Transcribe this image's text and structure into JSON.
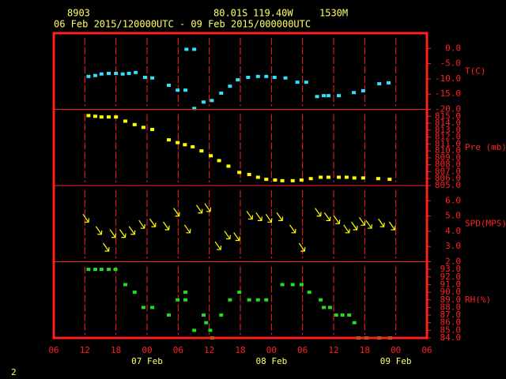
{
  "header": {
    "station": "8903",
    "lat": "80.01S",
    "lon": "119.40W",
    "elev": "1530M",
    "period": "06 Feb 2015/120000UTC - 09 Feb 2015/000000UTC"
  },
  "footer": "2",
  "chart_data": [
    {
      "type": "scatter",
      "y_label": "T(C)",
      "color": "#33e0ff",
      "xlim": [
        0,
        72
      ],
      "ylim": [
        -20,
        5
      ],
      "yticks": [
        {
          "value": 0,
          "label": "0.0"
        },
        {
          "value": -5,
          "label": "-5.0"
        },
        {
          "value": -10,
          "label": "-10.0"
        },
        {
          "value": -15,
          "label": "-15.0"
        },
        {
          "value": -20,
          "label": "-20.0"
        }
      ],
      "x": [
        6.7,
        8.0,
        9.2,
        10.6,
        12.0,
        13.3,
        14.5,
        15.8,
        17.6,
        19.0,
        22.2,
        23.9,
        25.4,
        25.6,
        27.1,
        27.1,
        28.9,
        30.5,
        32.3,
        34.0,
        35.5,
        37.5,
        39.4,
        41.0,
        42.6,
        44.7,
        47.0,
        48.7,
        50.8,
        52.1,
        53.0,
        55.0,
        57.9,
        59.7,
        62.8,
        64.6
      ],
      "values": [
        -9.2,
        -8.9,
        -8.4,
        -8.2,
        -8.2,
        -8.4,
        -8.2,
        -7.9,
        -9.5,
        -9.7,
        -12.1,
        -13.7,
        -13.7,
        -0.3,
        -0.3,
        -19.7,
        -17.6,
        -17.1,
        -14.7,
        -12.4,
        -10.3,
        -9.5,
        -9.2,
        -9.2,
        -9.5,
        -9.7,
        -11.1,
        -11.1,
        -15.8,
        -15.5,
        -15.5,
        -15.5,
        -14.5,
        -13.9,
        -11.6,
        -11.3
      ]
    },
    {
      "type": "scatter",
      "y_label": "Pre (mb)",
      "color": "#ffff00",
      "xlim": [
        0,
        72
      ],
      "ylim": [
        805,
        816
      ],
      "yticks": [
        {
          "value": 815,
          "label": "815.0"
        },
        {
          "value": 814,
          "label": "814.0"
        },
        {
          "value": 813,
          "label": "813.0"
        },
        {
          "value": 812,
          "label": "812.0"
        },
        {
          "value": 811,
          "label": "811.0"
        },
        {
          "value": 810,
          "label": "810.0"
        },
        {
          "value": 809,
          "label": "809.0"
        },
        {
          "value": 808,
          "label": "808.0"
        },
        {
          "value": 807,
          "label": "807.0"
        },
        {
          "value": 806,
          "label": "806.0"
        },
        {
          "value": 805,
          "label": "805.0"
        }
      ],
      "x": [
        6.7,
        8.0,
        9.2,
        10.6,
        12.0,
        13.8,
        15.6,
        17.3,
        19.0,
        22.2,
        23.9,
        25.3,
        26.8,
        28.5,
        30.3,
        31.9,
        33.7,
        35.8,
        37.7,
        39.4,
        41.0,
        42.7,
        44.1,
        46.1,
        47.8,
        49.6,
        51.5,
        53.0,
        55.0,
        56.5,
        58.0,
        59.7,
        62.6,
        64.8
      ],
      "values": [
        815.1,
        815.0,
        814.9,
        814.9,
        814.9,
        814.3,
        813.8,
        813.4,
        813.1,
        811.6,
        811.2,
        810.9,
        810.6,
        810.0,
        809.3,
        808.6,
        807.8,
        806.9,
        806.6,
        806.2,
        805.9,
        805.8,
        805.7,
        805.7,
        805.8,
        806.0,
        806.2,
        806.2,
        806.2,
        806.2,
        806.1,
        806.1,
        806.0,
        805.9
      ]
    },
    {
      "type": "wind",
      "y_label": "SPD(MPS)",
      "color": "#ffff00",
      "xlim": [
        0,
        72
      ],
      "ylim": [
        2,
        7
      ],
      "yticks": [
        {
          "value": 6,
          "label": "6.0"
        },
        {
          "value": 5,
          "label": "5.0"
        },
        {
          "value": 4,
          "label": "4.0"
        },
        {
          "value": 3,
          "label": "3.0"
        },
        {
          "value": 2,
          "label": "2.0"
        }
      ],
      "x": [
        6.7,
        9.2,
        10.6,
        11.9,
        13.8,
        15.6,
        17.5,
        19.6,
        22.2,
        24.2,
        26.3,
        28.6,
        30.2,
        32.2,
        34.0,
        35.8,
        38.3,
        40.1,
        42.0,
        44.1,
        46.6,
        48.4,
        51.5,
        53.3,
        55.1,
        57.0,
        58.5,
        60.0,
        61.3,
        63.7,
        65.8
      ],
      "values": [
        4.6,
        3.8,
        2.7,
        3.6,
        3.6,
        3.8,
        4.2,
        4.3,
        4.1,
        5.0,
        3.9,
        5.2,
        5.3,
        2.8,
        3.5,
        3.4,
        4.8,
        4.7,
        4.6,
        4.7,
        3.9,
        2.7,
        5.0,
        4.7,
        4.5,
        3.9,
        4.1,
        4.4,
        4.2,
        4.3,
        4.1
      ]
    },
    {
      "type": "scatter",
      "y_label": "RH(%)",
      "color": "#22dd22",
      "xlim": [
        0,
        72
      ],
      "ylim": [
        84,
        94
      ],
      "yticks": [
        {
          "value": 93,
          "label": "93.0"
        },
        {
          "value": 92,
          "label": "92.0"
        },
        {
          "value": 91,
          "label": "91.0"
        },
        {
          "value": 90,
          "label": "90.0"
        },
        {
          "value": 89,
          "label": "89.0"
        },
        {
          "value": 88,
          "label": "88.0"
        },
        {
          "value": 87,
          "label": "87.0"
        },
        {
          "value": 86,
          "label": "86.0"
        },
        {
          "value": 85,
          "label": "85.0"
        },
        {
          "value": 84,
          "label": "84.0"
        }
      ],
      "xticks": [
        {
          "value": 0,
          "label": "06"
        },
        {
          "value": 6,
          "label": "12"
        },
        {
          "value": 12,
          "label": "18"
        },
        {
          "value": 18,
          "label": "00"
        },
        {
          "value": 24,
          "label": "06"
        },
        {
          "value": 30,
          "label": "12"
        },
        {
          "value": 36,
          "label": "18"
        },
        {
          "value": 42,
          "label": "00"
        },
        {
          "value": 48,
          "label": "06"
        },
        {
          "value": 54,
          "label": "12"
        },
        {
          "value": 60,
          "label": "18"
        },
        {
          "value": 66,
          "label": "00"
        },
        {
          "value": 72,
          "label": "06"
        }
      ],
      "day_labels": [
        {
          "value": 18,
          "label": "07 Feb"
        },
        {
          "value": 42,
          "label": "08 Feb"
        },
        {
          "value": 66,
          "label": "09 Feb"
        }
      ],
      "x": [
        6.7,
        8.0,
        9.2,
        10.6,
        11.9,
        13.8,
        15.6,
        17.3,
        19.0,
        22.2,
        23.9,
        25.4,
        25.4,
        27.1,
        28.9,
        29.4,
        30.2,
        30.6,
        32.3,
        34.0,
        35.8,
        37.7,
        39.4,
        41.0,
        44.1,
        46.1,
        47.8,
        49.3,
        51.5,
        52.1,
        53.3,
        54.5,
        55.7,
        57.0,
        58.0,
        58.8,
        60.3,
        62.8,
        64.9
      ],
      "values": [
        93,
        93,
        93,
        93,
        93,
        91,
        90,
        88,
        88,
        87,
        89,
        90,
        89,
        85,
        87,
        86,
        85,
        84,
        87,
        89,
        90,
        89,
        89,
        89,
        91,
        91,
        91,
        90,
        89,
        88,
        88,
        87,
        87,
        87,
        86,
        84,
        84,
        84,
        84
      ]
    }
  ]
}
